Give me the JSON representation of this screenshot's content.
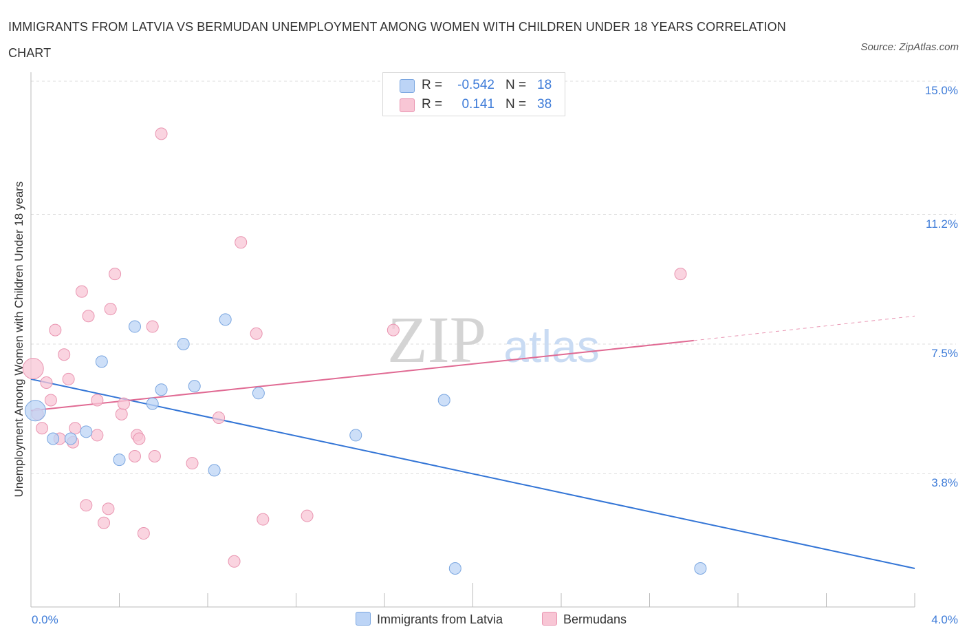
{
  "title": "IMMIGRANTS FROM LATVIA VS BERMUDAN UNEMPLOYMENT AMONG WOMEN WITH CHILDREN UNDER 18 YEARS CORRELATION CHART",
  "source": "Source: ZipAtlas.com",
  "watermark": {
    "zip": "ZIP",
    "atlas": "atlas"
  },
  "legend": {
    "r_label": "R =",
    "n_label": "N =",
    "latvia": {
      "r": "-0.542",
      "n": "18"
    },
    "bermudans": {
      "r": "0.141",
      "n": "38"
    }
  },
  "colors": {
    "latvia_fill": "#bcd4f6",
    "latvia_stroke": "#7aa6e0",
    "latvia_line": "#3375d6",
    "bermudan_fill": "#f8c6d5",
    "bermudan_stroke": "#e994b0",
    "bermudan_line": "#e06a93",
    "grid": "#dddddd",
    "tick_text": "#3d7bd8"
  },
  "chart_data": {
    "type": "scatter",
    "title": "IMMIGRANTS FROM LATVIA VS BERMUDAN UNEMPLOYMENT AMONG WOMEN WITH CHILDREN UNDER 18 YEARS CORRELATION CHART",
    "xlabel": "",
    "ylabel": "Unemployment Among Women with Children Under 18 years",
    "xlim": [
      0,
      4.0
    ],
    "ylim": [
      0,
      15.0
    ],
    "x_tick_labels": [
      "0.0%",
      "4.0%"
    ],
    "y_ticks": [
      3.8,
      7.5,
      11.2,
      15.0
    ],
    "y_tick_labels": [
      "3.8%",
      "7.5%",
      "11.2%",
      "15.0%"
    ],
    "series": [
      {
        "name": "Immigrants from Latvia",
        "r": -0.542,
        "n": 18,
        "points": [
          {
            "x": 0.02,
            "y": 5.6,
            "large": true
          },
          {
            "x": 0.1,
            "y": 4.8
          },
          {
            "x": 0.18,
            "y": 4.8
          },
          {
            "x": 0.25,
            "y": 5.0
          },
          {
            "x": 0.32,
            "y": 7.0
          },
          {
            "x": 0.4,
            "y": 4.2
          },
          {
            "x": 0.47,
            "y": 8.0
          },
          {
            "x": 0.55,
            "y": 5.8
          },
          {
            "x": 0.59,
            "y": 6.2
          },
          {
            "x": 0.69,
            "y": 7.5
          },
          {
            "x": 0.74,
            "y": 6.3
          },
          {
            "x": 0.83,
            "y": 3.9
          },
          {
            "x": 0.88,
            "y": 8.2
          },
          {
            "x": 1.03,
            "y": 6.1
          },
          {
            "x": 1.47,
            "y": 4.9
          },
          {
            "x": 1.87,
            "y": 5.9
          },
          {
            "x": 1.92,
            "y": 1.1
          },
          {
            "x": 3.03,
            "y": 1.1
          }
        ],
        "trend": {
          "x0": 0.0,
          "y0": 6.5,
          "x1": 4.0,
          "y1": 1.1
        }
      },
      {
        "name": "Bermudans",
        "r": 0.141,
        "n": 38,
        "points": [
          {
            "x": 0.01,
            "y": 6.8,
            "large": true
          },
          {
            "x": 0.03,
            "y": 5.5
          },
          {
            "x": 0.05,
            "y": 5.1
          },
          {
            "x": 0.07,
            "y": 6.4
          },
          {
            "x": 0.09,
            "y": 5.9
          },
          {
            "x": 0.11,
            "y": 7.9
          },
          {
            "x": 0.13,
            "y": 4.8
          },
          {
            "x": 0.15,
            "y": 7.2
          },
          {
            "x": 0.17,
            "y": 6.5
          },
          {
            "x": 0.19,
            "y": 4.7
          },
          {
            "x": 0.2,
            "y": 5.1
          },
          {
            "x": 0.23,
            "y": 9.0
          },
          {
            "x": 0.25,
            "y": 2.9
          },
          {
            "x": 0.26,
            "y": 8.3
          },
          {
            "x": 0.3,
            "y": 5.9
          },
          {
            "x": 0.3,
            "y": 4.9
          },
          {
            "x": 0.33,
            "y": 2.4
          },
          {
            "x": 0.35,
            "y": 2.8
          },
          {
            "x": 0.36,
            "y": 8.5
          },
          {
            "x": 0.38,
            "y": 9.5
          },
          {
            "x": 0.41,
            "y": 5.5
          },
          {
            "x": 0.42,
            "y": 5.8
          },
          {
            "x": 0.47,
            "y": 4.3
          },
          {
            "x": 0.48,
            "y": 4.9
          },
          {
            "x": 0.49,
            "y": 4.8
          },
          {
            "x": 0.51,
            "y": 2.1
          },
          {
            "x": 0.55,
            "y": 8.0
          },
          {
            "x": 0.56,
            "y": 4.3
          },
          {
            "x": 0.59,
            "y": 13.5
          },
          {
            "x": 0.73,
            "y": 4.1
          },
          {
            "x": 0.85,
            "y": 5.4
          },
          {
            "x": 0.92,
            "y": 1.3
          },
          {
            "x": 0.95,
            "y": 10.4
          },
          {
            "x": 1.02,
            "y": 7.8
          },
          {
            "x": 1.05,
            "y": 2.5
          },
          {
            "x": 1.25,
            "y": 2.6
          },
          {
            "x": 1.64,
            "y": 7.9
          },
          {
            "x": 2.94,
            "y": 9.5
          }
        ],
        "trend": {
          "x0": 0.0,
          "y0": 5.6,
          "x1": 3.0,
          "y1": 7.6,
          "dashed_to_x": 4.0,
          "dashed_to_y": 8.3
        }
      }
    ]
  }
}
